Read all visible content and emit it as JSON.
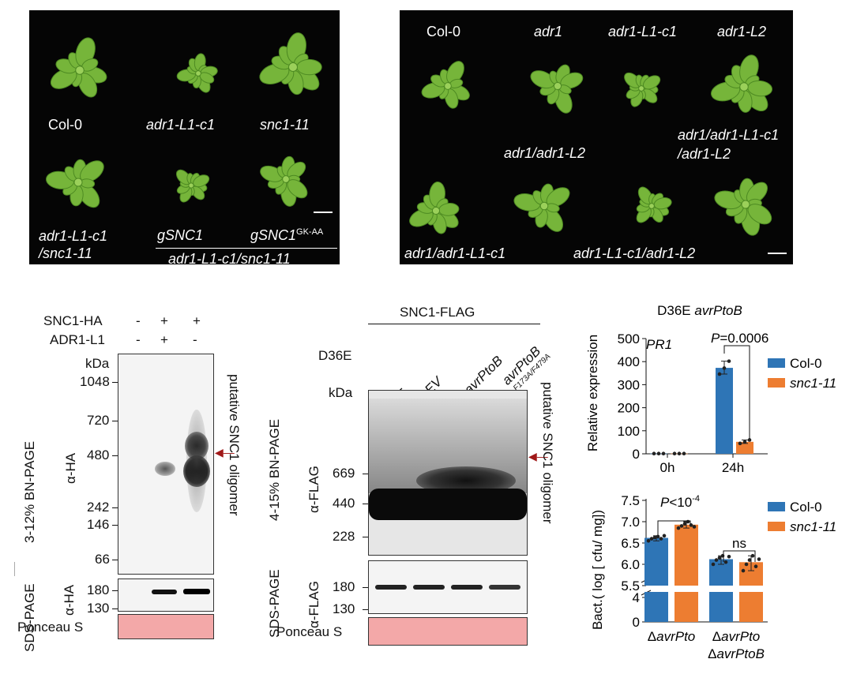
{
  "panel_a": {
    "row1": [
      "Col-0",
      "adr1-L1-c1",
      "snc1-11"
    ],
    "row2": [
      "adr1-L1-c1\n/snc1-11",
      "gSNC1",
      "gSNC1",
      "GK-AA"
    ],
    "bracket_label": "adr1-L1-c1/snc1-11"
  },
  "panel_b": {
    "row1": [
      "Col-0",
      "adr1",
      "adr1-L1-c1",
      "adr1-L2"
    ],
    "row2": [
      "adr1/adr1-L2",
      "adr1/adr1-L1-c1",
      "/adr1-L2"
    ],
    "row3": [
      "adr1/adr1-L1-c1",
      "adr1-L1-c1/adr1-L2"
    ]
  },
  "panel_c": {
    "snc1_ha": "SNC1-HA",
    "adr1_l1": "ADR1-L1",
    "signs_row1": [
      "-",
      "+",
      "+"
    ],
    "signs_row2": [
      "-",
      "+",
      "-"
    ],
    "kda": "kDa",
    "markers": [
      "1048",
      "720",
      "480",
      "242",
      "146",
      "66"
    ],
    "sds_markers": [
      "180",
      "130"
    ],
    "gel_label": "3-12% BN-PAGE",
    "antibody": "α-HA",
    "sds_label": "SDS-PAGE",
    "ponceau": "Ponceau S",
    "oligomer_label": "putative SNC1 oligomer"
  },
  "panel_d": {
    "snc1_flag": "SNC1-FLAG",
    "d36e": "D36E",
    "lanes": [
      "-",
      "EV",
      "avrPtoB",
      "avrPtoB",
      "F173A/F479A"
    ],
    "kda": "kDa",
    "markers": [
      "669",
      "440",
      "228"
    ],
    "sds_markers": [
      "180",
      "130"
    ],
    "gel_label": "4-15% BN-PAGE",
    "antibody": "α-FLAG",
    "sds_label": "SDS-PAGE",
    "ponceau": "Ponceau S",
    "oligomer_label": "putative SNC1 oligomer"
  },
  "chart_data": [
    {
      "type": "bar",
      "title": "D36E avrPtoB",
      "gene": "PR1",
      "ylabel": "Relative expression",
      "ylim": [
        0,
        500
      ],
      "yticks": [
        "0",
        "100",
        "200",
        "300",
        "400",
        "500"
      ],
      "categories": [
        "0h",
        "24h"
      ],
      "series": [
        {
          "name": "Col-0",
          "values": [
            1,
            373
          ],
          "color": "#2e75b6"
        },
        {
          "name": "snc1-11",
          "values": [
            1,
            52
          ],
          "color": "#ed7d31"
        }
      ],
      "points": {
        "Col-0": [
          [
            1,
            1,
            1
          ],
          [
            346,
            372,
            402
          ]
        ],
        "snc1-11": [
          [
            1,
            1,
            1
          ],
          [
            45,
            52,
            60
          ]
        ]
      },
      "annotation": "P=0.0006",
      "legend": "right"
    },
    {
      "type": "bar",
      "ylabel": "Bact.( log [ cfu/ mg])",
      "ylim": [
        0,
        7.5
      ],
      "yticks_upper": [
        "5.5",
        "6.0",
        "6.5",
        "7.0",
        "7.5"
      ],
      "yticks_lower": [
        "0",
        "4"
      ],
      "categories": [
        "ΔavrPto",
        "ΔavrPto\nΔavrPtoB"
      ],
      "category_lines": [
        [
          "ΔavrPto"
        ],
        [
          "ΔavrPto",
          "ΔavrPtoB"
        ]
      ],
      "series": [
        {
          "name": "Col-0",
          "values": [
            6.62,
            6.12
          ],
          "color": "#2e75b6"
        },
        {
          "name": "snc1-11",
          "values": [
            6.93,
            6.05
          ],
          "color": "#ed7d31"
        }
      ],
      "points": {
        "Col-0": [
          [
            6.55,
            6.6,
            6.63,
            6.65,
            6.6,
            6.67
          ],
          [
            6.0,
            6.1,
            6.15,
            6.2,
            6.05,
            6.18
          ]
        ],
        "snc1-11": [
          [
            6.85,
            6.9,
            6.95,
            7.0,
            6.92,
            6.88
          ],
          [
            5.85,
            6.0,
            6.1,
            6.2,
            5.95,
            6.12
          ]
        ]
      },
      "annotations": [
        "P<10",
        "-4",
        "ns"
      ],
      "legend": "right",
      "axis_break": true
    }
  ]
}
